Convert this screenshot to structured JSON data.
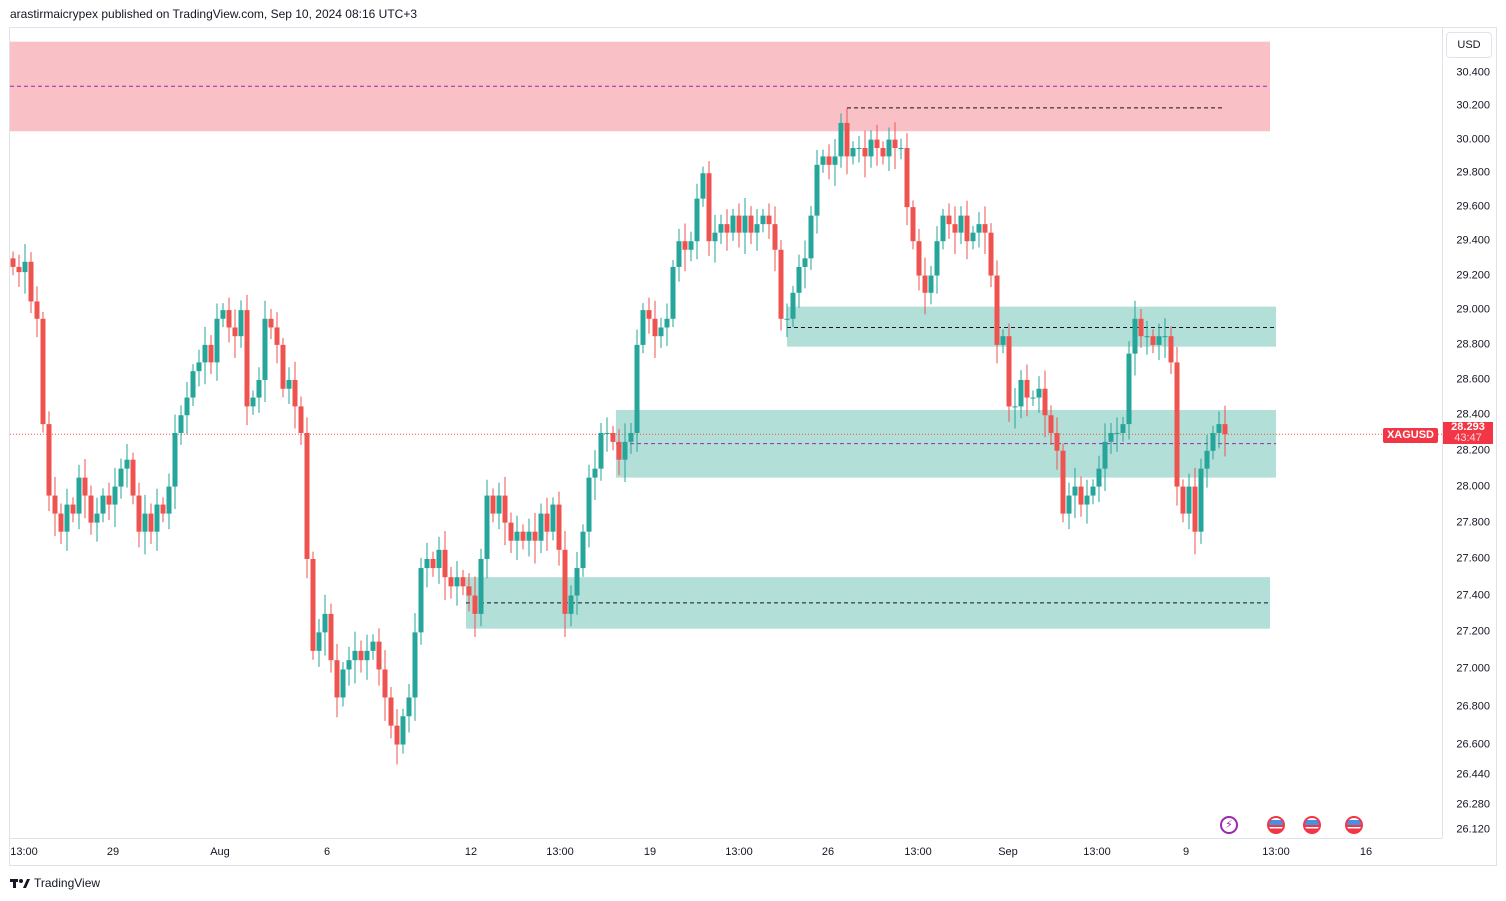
{
  "header": {
    "text": "arastirmaicrypex published on TradingView.com, Sep 10, 2024 08:16 UTC+3"
  },
  "price_axis": {
    "currency": "USD"
  },
  "symbol": {
    "name": "XAGUSD",
    "price": "28.293",
    "countdown": "43:47"
  },
  "footer": {
    "brand": "TradingView"
  },
  "colors": {
    "up": "#26a69a",
    "down": "#ef5350",
    "supply_zone": "#f9c1c6",
    "demand_zone": "#b2dfd8",
    "mid_line": "#9c27b0"
  },
  "events": [
    "lightning-icon",
    "us-flag-icon",
    "us-flag-icon",
    "us-flag-icon"
  ],
  "chart_data": {
    "type": "candlestick",
    "symbol": "XAGUSD",
    "timeframe": "4h",
    "scale": "log",
    "ylim": [
      26.12,
      30.6
    ],
    "y_ticks": [
      "30.400",
      "30.200",
      "30.000",
      "29.800",
      "29.600",
      "29.400",
      "29.200",
      "29.000",
      "28.800",
      "28.600",
      "28.400",
      "28.200",
      "28.000",
      "27.800",
      "27.600",
      "27.400",
      "27.200",
      "27.000",
      "26.800",
      "26.600",
      "26.440",
      "26.280",
      "26.120"
    ],
    "x_ticks": [
      "13:00",
      "29",
      "Aug",
      "6",
      "12",
      "13:00",
      "19",
      "13:00",
      "26",
      "13:00",
      "Sep",
      "13:00",
      "9",
      "13:00",
      "16"
    ],
    "first_open": 29.3,
    "closes": [
      29.25,
      29.22,
      29.28,
      29.05,
      28.95,
      28.35,
      27.95,
      27.85,
      27.75,
      27.9,
      27.85,
      28.05,
      27.95,
      27.8,
      27.85,
      27.95,
      27.9,
      28.0,
      28.1,
      28.15,
      27.95,
      27.75,
      27.85,
      27.75,
      27.9,
      27.85,
      28.0,
      28.3,
      28.4,
      28.5,
      28.65,
      28.7,
      28.8,
      28.7,
      28.95,
      29.0,
      28.9,
      28.85,
      29.0,
      28.45,
      28.5,
      28.6,
      28.95,
      28.9,
      28.8,
      28.55,
      28.6,
      28.45,
      28.3,
      27.6,
      27.1,
      27.2,
      27.3,
      27.05,
      26.85,
      27.0,
      27.05,
      27.1,
      27.05,
      27.1,
      27.15,
      27.0,
      26.85,
      26.7,
      26.6,
      26.75,
      26.85,
      27.2,
      27.55,
      27.6,
      27.55,
      27.65,
      27.5,
      27.45,
      27.5,
      27.45,
      27.4,
      27.3,
      27.6,
      27.95,
      27.85,
      27.95,
      27.8,
      27.7,
      27.75,
      27.7,
      27.75,
      27.7,
      27.85,
      27.75,
      27.9,
      27.65,
      27.3,
      27.4,
      27.55,
      27.75,
      28.05,
      28.1,
      28.3,
      28.3,
      28.25,
      28.15,
      28.25,
      28.3,
      28.8,
      29.0,
      28.95,
      28.85,
      28.9,
      28.95,
      29.25,
      29.4,
      29.35,
      29.4,
      29.65,
      29.8,
      29.4,
      29.45,
      29.5,
      29.45,
      29.55,
      29.45,
      29.55,
      29.45,
      29.5,
      29.55,
      29.5,
      29.35,
      28.95,
      28.95,
      29.1,
      29.25,
      29.3,
      29.55,
      29.85,
      29.9,
      29.85,
      29.9,
      30.1,
      29.9,
      29.95,
      29.95,
      29.9,
      30.0,
      29.95,
      29.9,
      30.0,
      29.95,
      29.95,
      29.6,
      29.4,
      29.2,
      29.1,
      29.2,
      29.4,
      29.55,
      29.5,
      29.45,
      29.55,
      29.4,
      29.45,
      29.5,
      29.45,
      29.2,
      28.8,
      28.85,
      28.45,
      28.45,
      28.6,
      28.5,
      28.5,
      28.55,
      28.4,
      28.3,
      28.2,
      27.85,
      27.95,
      28.0,
      27.9,
      27.95,
      28.0,
      28.1,
      28.25,
      28.3,
      28.3,
      28.35,
      28.75,
      28.95,
      28.85,
      28.85,
      28.8,
      28.85,
      28.85,
      28.7,
      28.0,
      27.85,
      28.0,
      27.75,
      28.1,
      28.2,
      28.3,
      28.35,
      28.293
    ],
    "zones": [
      {
        "kind": "supply",
        "top": 30.59,
        "bottom": 30.05,
        "start": -1,
        "end": 209.5,
        "mid": 30.32,
        "mid_style": "purple-dashed"
      },
      {
        "kind": "demand",
        "top": 29.02,
        "bottom": 28.79,
        "start": 129,
        "end": 210.5,
        "mid": 28.9,
        "mid_style": "black-dashed"
      },
      {
        "kind": "demand",
        "top": 28.43,
        "bottom": 28.05,
        "start": 100.5,
        "end": 210.5,
        "mid": 28.24,
        "mid_style": "purple-dashed"
      },
      {
        "kind": "demand",
        "top": 27.5,
        "bottom": 27.22,
        "start": 75.5,
        "end": 209.5,
        "mid": 27.36,
        "mid_style": "black-dashed"
      }
    ],
    "levels": [
      {
        "price": 30.19,
        "start": 139,
        "end": 201.5,
        "style": "black-dashed"
      }
    ],
    "last_price": 28.293
  }
}
